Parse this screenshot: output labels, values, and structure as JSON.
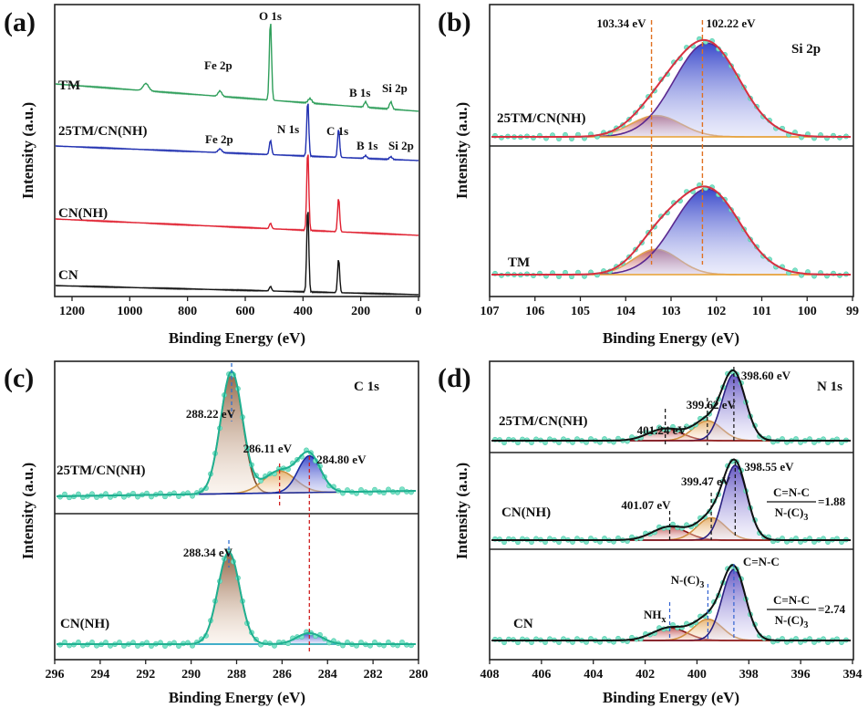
{
  "panels": {
    "a": {
      "letter": "(a)",
      "xlabel": "Binding Energy (eV)",
      "ylabel": "Intensity (a.u.)",
      "xticks": [
        "1200",
        "1000",
        "800",
        "600",
        "400",
        "200",
        "0"
      ],
      "spectra": [
        {
          "name": "TM",
          "color": "#2e9e5a",
          "labels": [
            "O 1s",
            "Fe 2p",
            "B 1s",
            "Si 2p"
          ]
        },
        {
          "name": "25TM/CN(NH)",
          "color": "#1f2fb0",
          "labels": [
            "N 1s",
            "Fe 2p",
            "C 1s",
            "B 1s",
            "Si 2p"
          ]
        },
        {
          "name": "CN(NH)",
          "color": "#e02030",
          "labels": []
        },
        {
          "name": "CN",
          "color": "#111111",
          "labels": []
        }
      ]
    },
    "b": {
      "letter": "(b)",
      "core": "Si 2p",
      "xlabel": "Binding Energy (eV)",
      "ylabel": "Intensity (a.u.)",
      "xticks": [
        "107",
        "106",
        "105",
        "104",
        "103",
        "102",
        "101",
        "100",
        "99"
      ],
      "peaks": [
        "103.34 eV",
        "102.22 eV"
      ],
      "subplots": [
        {
          "name": "25TM/CN(NH)"
        },
        {
          "name": "TM"
        }
      ]
    },
    "c": {
      "letter": "(c)",
      "core": "C 1s",
      "xlabel": "Binding Energy (eV)",
      "ylabel": "Intensity (a.u.)",
      "xticks": [
        "296",
        "294",
        "292",
        "290",
        "288",
        "286",
        "284",
        "282",
        "280"
      ],
      "subplots": [
        {
          "name": "25TM/CN(NH)",
          "peaks": [
            "288.22 eV",
            "286.11 eV",
            "284.80 eV"
          ]
        },
        {
          "name": "CN(NH)",
          "peaks": [
            "288.34 eV"
          ]
        }
      ]
    },
    "d": {
      "letter": "(d)",
      "core": "N 1s",
      "xlabel": "Binding Energy (eV)",
      "ylabel": "Intensity (a.u.)",
      "xticks": [
        "408",
        "406",
        "404",
        "402",
        "400",
        "398",
        "396",
        "394"
      ],
      "subplots": [
        {
          "name": "25TM/CN(NH)",
          "peaks": [
            "401.24 eV",
            "399.62 eV",
            "398.60 eV"
          ]
        },
        {
          "name": "CN(NH)",
          "peaks": [
            "401.07 eV",
            "399.47 eV",
            "398.55 eV"
          ],
          "ratio_num": "C=N-C",
          "ratio_den": "N-(C)",
          "ratio_den_sub": "3",
          "ratio_val": "=1.88"
        },
        {
          "name": "CN",
          "labels": {
            "nhx": "NH",
            "nhx_sub": "x",
            "nc3": "N-(C)",
            "nc3_sub": "3",
            "cnc": "C=N-C"
          },
          "ratio_num": "C=N-C",
          "ratio_den": "N-(C)",
          "ratio_den_sub": "3",
          "ratio_val": "=2.74"
        }
      ]
    }
  },
  "chart_data": [
    {
      "type": "line",
      "title": "(a)",
      "xlabel": "Binding Energy (eV)",
      "ylabel": "Intensity (a.u.)",
      "xlim": [
        1300,
        0
      ],
      "series": [
        {
          "name": "TM",
          "peaks_eV": [
            {
              "label": "O 1s",
              "x": 531
            },
            {
              "label": "Fe 2p",
              "x": 711
            },
            {
              "label": "B 1s",
              "x": 192
            },
            {
              "label": "Si 2p",
              "x": 102
            }
          ]
        },
        {
          "name": "25TM/CN(NH)",
          "peaks_eV": [
            {
              "label": "N 1s",
              "x": 398
            },
            {
              "label": "C 1s",
              "x": 288
            },
            {
              "label": "O 1s",
              "x": 531
            },
            {
              "label": "Fe 2p",
              "x": 711
            },
            {
              "label": "B 1s",
              "x": 192
            },
            {
              "label": "Si 2p",
              "x": 102
            }
          ]
        },
        {
          "name": "CN(NH)",
          "peaks_eV": [
            {
              "label": "N 1s",
              "x": 398
            },
            {
              "label": "C 1s",
              "x": 288
            }
          ]
        },
        {
          "name": "CN",
          "peaks_eV": [
            {
              "label": "N 1s",
              "x": 398
            },
            {
              "label": "C 1s",
              "x": 288
            }
          ]
        }
      ]
    },
    {
      "type": "line",
      "title": "(b) Si 2p",
      "xlabel": "Binding Energy (eV)",
      "ylabel": "Intensity (a.u.)",
      "xlim": [
        107,
        99
      ],
      "series": [
        {
          "name": "25TM/CN(NH)",
          "fit_peaks": [
            {
              "center": 103.34,
              "rel_height": 0.22,
              "sigma": 0.55
            },
            {
              "center": 102.22,
              "rel_height": 1.0,
              "sigma": 0.75
            }
          ]
        },
        {
          "name": "TM",
          "fit_peaks": [
            {
              "center": 103.34,
              "rel_height": 0.28,
              "sigma": 0.5
            },
            {
              "center": 102.22,
              "rel_height": 1.0,
              "sigma": 0.75
            }
          ]
        }
      ]
    },
    {
      "type": "line",
      "title": "(c) C 1s",
      "xlabel": "Binding Energy (eV)",
      "ylabel": "Intensity (a.u.)",
      "xlim": [
        296,
        280
      ],
      "series": [
        {
          "name": "25TM/CN(NH)",
          "fit_peaks": [
            {
              "center": 288.22,
              "rel_height": 1.0
            },
            {
              "center": 286.11,
              "rel_height": 0.18
            },
            {
              "center": 284.8,
              "rel_height": 0.32
            }
          ]
        },
        {
          "name": "CN(NH)",
          "fit_peaks": [
            {
              "center": 288.34,
              "rel_height": 1.0
            },
            {
              "center": 284.8,
              "rel_height": 0.1
            }
          ]
        }
      ]
    },
    {
      "type": "line",
      "title": "(d) N 1s",
      "xlabel": "Binding Energy (eV)",
      "ylabel": "Intensity (a.u.)",
      "xlim": [
        408,
        394
      ],
      "series": [
        {
          "name": "25TM/CN(NH)",
          "fit_peaks": [
            {
              "center": 401.24,
              "rel_height": 0.2
            },
            {
              "center": 399.62,
              "rel_height": 0.32
            },
            {
              "center": 398.6,
              "rel_height": 1.0
            }
          ]
        },
        {
          "name": "CN(NH)",
          "fit_peaks": [
            {
              "center": 401.07,
              "rel_height": 0.18
            },
            {
              "center": 399.47,
              "rel_height": 0.3
            },
            {
              "center": 398.55,
              "rel_height": 1.0
            }
          ],
          "ratio_CNC_NC3": 1.88
        },
        {
          "name": "CN",
          "fit_peaks": [
            {
              "center": 401.07,
              "rel_height": 0.15
            },
            {
              "center": 399.6,
              "rel_height": 0.25
            },
            {
              "center": 398.6,
              "rel_height": 1.0
            }
          ],
          "ratio_CNC_NC3": 2.74
        }
      ]
    }
  ]
}
